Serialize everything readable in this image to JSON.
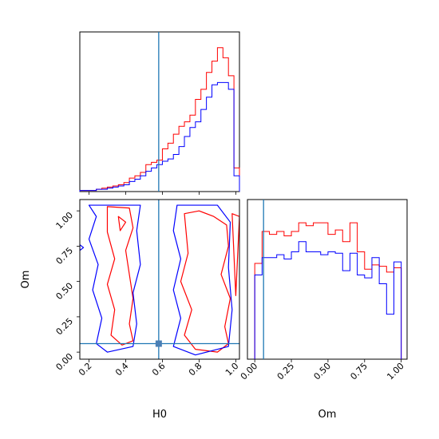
{
  "chart_data": {
    "type": "corner",
    "parameters": [
      "H0",
      "Om"
    ],
    "truth": {
      "H0": 0.58,
      "Om": 0.06
    },
    "colors": {
      "series_a": "#ff0000",
      "series_b": "#0000ff",
      "truth": "#1f77b4"
    },
    "hist_H0": {
      "xlim": [
        0.15,
        1.02
      ],
      "edges": [
        0.15,
        0.18,
        0.21,
        0.24,
        0.27,
        0.3,
        0.33,
        0.36,
        0.39,
        0.42,
        0.45,
        0.48,
        0.51,
        0.54,
        0.57,
        0.6,
        0.63,
        0.66,
        0.69,
        0.72,
        0.75,
        0.78,
        0.81,
        0.84,
        0.87,
        0.9,
        0.93,
        0.96,
        0.99,
        1.02
      ],
      "series": [
        {
          "values": [
            1,
            1,
            1,
            2,
            3,
            4,
            5,
            6,
            8,
            12,
            14,
            17,
            24,
            26,
            28,
            38,
            43,
            51,
            58,
            62,
            68,
            82,
            91,
            106,
            116,
            128,
            119,
            103,
            21
          ]
        },
        {
          "values": [
            1,
            1,
            1,
            2,
            2,
            3,
            4,
            5,
            6,
            9,
            11,
            14,
            18,
            21,
            24,
            27,
            29,
            33,
            40,
            49,
            57,
            62,
            73,
            84,
            95,
            97,
            97,
            91,
            14
          ]
        }
      ]
    },
    "hist_Om": {
      "xlim": [
        -0.05,
        1.04
      ],
      "xticks": [
        "0.00",
        "0.25",
        "0.50",
        "0.75",
        "1.00"
      ],
      "xlabel": "Om",
      "edges": [
        0.0,
        0.05,
        0.1,
        0.15,
        0.2,
        0.25,
        0.3,
        0.35,
        0.4,
        0.45,
        0.5,
        0.55,
        0.6,
        0.65,
        0.7,
        0.75,
        0.8,
        0.85,
        0.9,
        0.95,
        1.0
      ],
      "series": [
        {
          "values": [
            66,
            88,
            86,
            88,
            85,
            88,
            94,
            92,
            94,
            94,
            86,
            89,
            81,
            94,
            74,
            62,
            65,
            64,
            60,
            63
          ]
        },
        {
          "values": [
            58,
            70,
            70,
            72,
            69,
            74,
            81,
            74,
            74,
            72,
            74,
            73,
            61,
            73,
            58,
            56,
            70,
            52,
            31,
            67
          ]
        }
      ]
    },
    "scatter_H0_Om": {
      "xlim": [
        0.15,
        1.02
      ],
      "ylim": [
        -0.05,
        1.08
      ],
      "xticks": [
        "0.2",
        "0.4",
        "0.6",
        "0.8",
        "1.0"
      ],
      "yticks": [
        "0.00",
        "0.25",
        "0.50",
        "0.75",
        "1.00"
      ],
      "xlabel": "H0",
      "ylabel": "Om",
      "contours": [
        {
          "series": 0,
          "points": [
            [
              0.3,
              1.03
            ],
            [
              0.42,
              1.02
            ],
            [
              0.44,
              0.88
            ],
            [
              0.4,
              0.72
            ],
            [
              0.42,
              0.55
            ],
            [
              0.44,
              0.38
            ],
            [
              0.42,
              0.2
            ],
            [
              0.44,
              0.08
            ],
            [
              0.38,
              0.05
            ],
            [
              0.32,
              0.12
            ],
            [
              0.34,
              0.3
            ],
            [
              0.3,
              0.48
            ],
            [
              0.34,
              0.66
            ],
            [
              0.3,
              0.85
            ]
          ]
        },
        {
          "series": 0,
          "points": [
            [
              0.36,
              0.96
            ],
            [
              0.4,
              0.92
            ],
            [
              0.37,
              0.86
            ]
          ]
        },
        {
          "series": 0,
          "points": [
            [
              0.72,
              0.98
            ],
            [
              0.8,
              1.0
            ],
            [
              0.88,
              0.96
            ],
            [
              0.95,
              0.9
            ],
            [
              0.96,
              0.75
            ],
            [
              0.92,
              0.55
            ],
            [
              0.97,
              0.38
            ],
            [
              0.94,
              0.18
            ],
            [
              0.96,
              0.06
            ],
            [
              0.9,
              0.0
            ],
            [
              0.78,
              0.02
            ],
            [
              0.72,
              0.12
            ],
            [
              0.76,
              0.3
            ],
            [
              0.7,
              0.5
            ],
            [
              0.74,
              0.7
            ]
          ]
        },
        {
          "series": 0,
          "points": [
            [
              0.98,
              0.98
            ],
            [
              1.02,
              0.96
            ],
            [
              1.0,
              0.4
            ]
          ]
        },
        {
          "series": 1,
          "points": [
            [
              0.2,
              1.04
            ],
            [
              0.48,
              1.04
            ],
            [
              0.46,
              0.86
            ],
            [
              0.48,
              0.62
            ],
            [
              0.44,
              0.42
            ],
            [
              0.46,
              0.2
            ],
            [
              0.44,
              0.04
            ],
            [
              0.3,
              0.0
            ],
            [
              0.24,
              0.06
            ],
            [
              0.27,
              0.24
            ],
            [
              0.22,
              0.44
            ],
            [
              0.25,
              0.62
            ],
            [
              0.2,
              0.8
            ],
            [
              0.24,
              0.96
            ]
          ]
        },
        {
          "series": 1,
          "points": [
            [
              0.68,
              1.04
            ],
            [
              0.9,
              1.04
            ],
            [
              0.97,
              0.92
            ],
            [
              0.96,
              0.6
            ],
            [
              0.98,
              0.3
            ],
            [
              0.96,
              0.04
            ],
            [
              0.78,
              -0.02
            ],
            [
              0.66,
              0.04
            ],
            [
              0.7,
              0.24
            ],
            [
              0.66,
              0.44
            ],
            [
              0.7,
              0.66
            ],
            [
              0.66,
              0.86
            ]
          ]
        },
        {
          "series": 1,
          "points": [
            [
              0.15,
              0.76
            ],
            [
              0.17,
              0.74
            ],
            [
              0.15,
              0.72
            ]
          ]
        }
      ]
    }
  }
}
